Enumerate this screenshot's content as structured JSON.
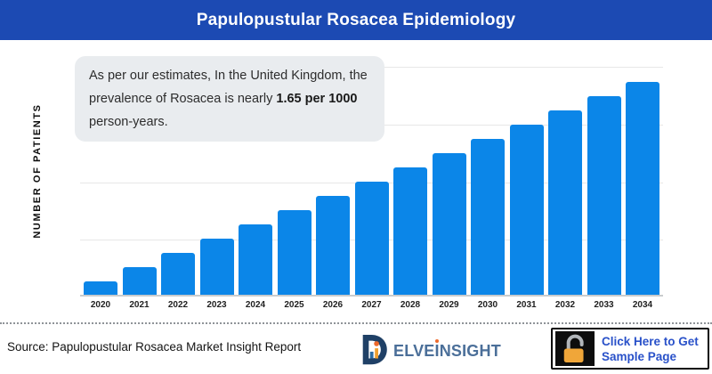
{
  "header": {
    "title": "Papulopustular Rosacea Epidemiology"
  },
  "chart": {
    "ylabel": "NUMBER OF PATIENTS",
    "callout": {
      "before": "As per our estimates, In the United Kingdom, the prevalence of Rosacea is nearly ",
      "bold": "1.65 per 1000",
      "after": " person-years."
    }
  },
  "chart_data": {
    "type": "bar",
    "title": "Papulopustular Rosacea Epidemiology",
    "categories": [
      "2020",
      "2021",
      "2022",
      "2023",
      "2024",
      "2025",
      "2026",
      "2027",
      "2028",
      "2029",
      "2030",
      "2031",
      "2032",
      "2033",
      "2034"
    ],
    "values": [
      0.23,
      0.48,
      0.72,
      0.97,
      1.22,
      1.46,
      1.71,
      1.95,
      2.2,
      2.45,
      2.69,
      2.94,
      3.18,
      3.43,
      3.68
    ],
    "value_note": "relative units estimated from gridlines; y-axis has no numeric tick labels; 1.0 = one horizontal gridline interval",
    "xlabel": "",
    "ylabel": "NUMBER OF PATIENTS",
    "grid": true,
    "gridline_count": 4,
    "legend": false,
    "bar_color": "#0b86e8",
    "trend": "steadily increasing from 2020 to 2034"
  },
  "footer": {
    "source": "Source: Papulopustular Rosacea Market Insight Report",
    "logo": {
      "icon": "delveinsight-d-bar-chart-icon",
      "wordmark_pre": "ELVE",
      "wordmark_i": "I",
      "wordmark_post": "NSIGHT"
    },
    "button": {
      "icon": "open-padlock-icon",
      "line1": "Click Here to Get",
      "line2": "Sample Page"
    }
  },
  "colors": {
    "header_bg": "#1c4ab3",
    "bar": "#0b86e8",
    "callout_bg": "#e9ecef",
    "gridline": "#e7e7e7",
    "button_text": "#2951c9",
    "logo_navy": "#1f4066",
    "logo_slate": "#4b6f99",
    "logo_orange": "#f0a030",
    "logo_dot_orange": "#ee6a2c",
    "lock_body_orange": "#f0a639",
    "lock_shackle_gray": "#b2b6ba"
  }
}
